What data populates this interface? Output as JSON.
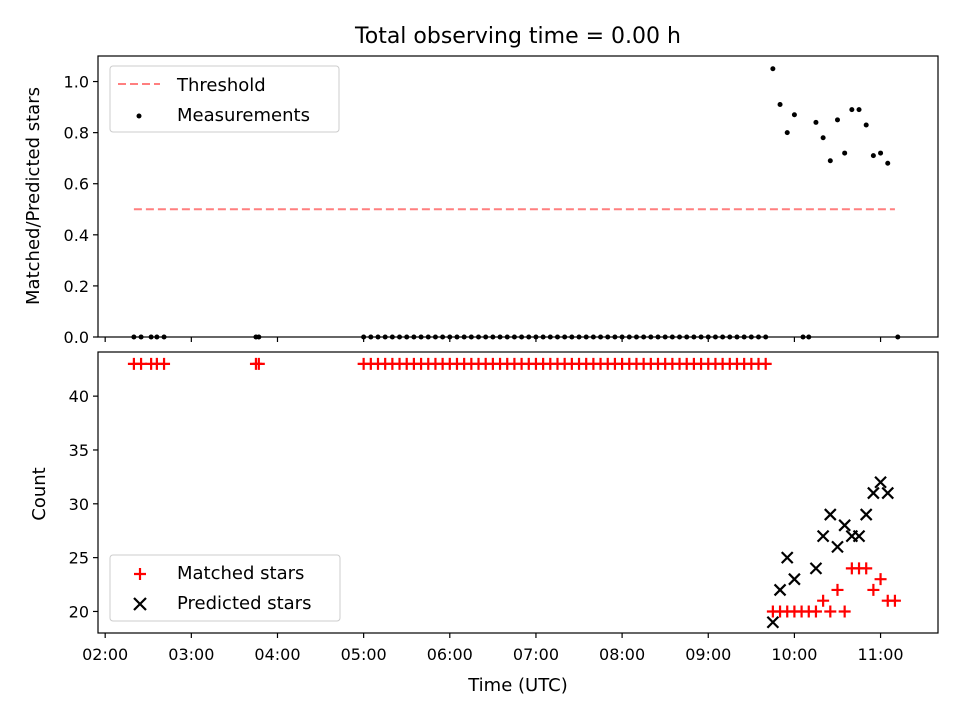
{
  "chart_data": [
    {
      "type": "scatter",
      "title": "Total observing time = 0.00 h",
      "xlabel": "",
      "ylabel": "Matched/Predicted stars",
      "ylim": [
        0,
        1.1
      ],
      "yticks": [
        "0.0",
        "0.2",
        "0.4",
        "0.6",
        "0.8",
        "1.0"
      ],
      "legend": "upper-left",
      "threshold": {
        "name": "Threshold",
        "value": 0.5,
        "x_start": "02:20",
        "x_end": "11:10",
        "color": "#ff7f7f"
      },
      "series": [
        {
          "name": "Measurements",
          "color": "#000000",
          "points": [
            [
              "02:20",
              0
            ],
            [
              "02:25",
              0
            ],
            [
              "02:32",
              0
            ],
            [
              "02:36",
              0
            ],
            [
              "02:41",
              0
            ],
            [
              "03:45",
              0
            ],
            [
              "03:47",
              0
            ],
            [
              "05:00",
              0
            ],
            [
              "05:05",
              0
            ],
            [
              "05:10",
              0
            ],
            [
              "05:15",
              0
            ],
            [
              "05:20",
              0
            ],
            [
              "05:25",
              0
            ],
            [
              "05:30",
              0
            ],
            [
              "05:35",
              0
            ],
            [
              "05:40",
              0
            ],
            [
              "05:45",
              0
            ],
            [
              "05:50",
              0
            ],
            [
              "05:55",
              0
            ],
            [
              "06:00",
              0
            ],
            [
              "06:05",
              0
            ],
            [
              "06:10",
              0
            ],
            [
              "06:15",
              0
            ],
            [
              "06:20",
              0
            ],
            [
              "06:25",
              0
            ],
            [
              "06:30",
              0
            ],
            [
              "06:35",
              0
            ],
            [
              "06:40",
              0
            ],
            [
              "06:45",
              0
            ],
            [
              "06:50",
              0
            ],
            [
              "06:55",
              0
            ],
            [
              "07:00",
              0
            ],
            [
              "07:05",
              0
            ],
            [
              "07:10",
              0
            ],
            [
              "07:15",
              0
            ],
            [
              "07:20",
              0
            ],
            [
              "07:25",
              0
            ],
            [
              "07:30",
              0
            ],
            [
              "07:35",
              0
            ],
            [
              "07:40",
              0
            ],
            [
              "07:45",
              0
            ],
            [
              "07:50",
              0
            ],
            [
              "07:55",
              0
            ],
            [
              "08:00",
              0
            ],
            [
              "08:05",
              0
            ],
            [
              "08:10",
              0
            ],
            [
              "08:15",
              0
            ],
            [
              "08:20",
              0
            ],
            [
              "08:25",
              0
            ],
            [
              "08:30",
              0
            ],
            [
              "08:35",
              0
            ],
            [
              "08:40",
              0
            ],
            [
              "08:45",
              0
            ],
            [
              "08:50",
              0
            ],
            [
              "08:55",
              0
            ],
            [
              "09:00",
              0
            ],
            [
              "09:05",
              0
            ],
            [
              "09:10",
              0
            ],
            [
              "09:15",
              0
            ],
            [
              "09:20",
              0
            ],
            [
              "09:25",
              0
            ],
            [
              "09:30",
              0
            ],
            [
              "09:35",
              0
            ],
            [
              "09:40",
              0
            ],
            [
              "09:45",
              1.05
            ],
            [
              "09:50",
              0.91
            ],
            [
              "09:55",
              0.8
            ],
            [
              "10:00",
              0.87
            ],
            [
              "10:06",
              0
            ],
            [
              "10:10",
              0
            ],
            [
              "10:15",
              0.84
            ],
            [
              "10:20",
              0.78
            ],
            [
              "10:25",
              0.69
            ],
            [
              "10:30",
              0.85
            ],
            [
              "10:35",
              0.72
            ],
            [
              "10:40",
              0.89
            ],
            [
              "10:45",
              0.89
            ],
            [
              "10:50",
              0.83
            ],
            [
              "10:55",
              0.71
            ],
            [
              "11:00",
              0.72
            ],
            [
              "11:05",
              0.68
            ],
            [
              "11:12",
              0
            ]
          ]
        }
      ]
    },
    {
      "type": "scatter",
      "title": "",
      "xlabel": "Time (UTC)",
      "ylabel": "Count",
      "ylim": [
        18,
        44.1
      ],
      "yticks": [
        "20",
        "25",
        "30",
        "35",
        "40"
      ],
      "xticks": [
        "02:00",
        "03:00",
        "04:00",
        "05:00",
        "06:00",
        "07:00",
        "08:00",
        "09:00",
        "10:00",
        "11:00"
      ],
      "xlim": [
        "01:55",
        "11:40"
      ],
      "legend": "lower-left",
      "series": [
        {
          "name": "Matched stars",
          "marker": "+",
          "color": "#ff0000",
          "points": [
            [
              "02:20",
              43
            ],
            [
              "02:25",
              43
            ],
            [
              "02:32",
              43
            ],
            [
              "02:36",
              43
            ],
            [
              "02:41",
              43
            ],
            [
              "03:45",
              43
            ],
            [
              "03:47",
              43
            ],
            [
              "05:00",
              43
            ],
            [
              "05:05",
              43
            ],
            [
              "05:10",
              43
            ],
            [
              "05:15",
              43
            ],
            [
              "05:20",
              43
            ],
            [
              "05:25",
              43
            ],
            [
              "05:30",
              43
            ],
            [
              "05:35",
              43
            ],
            [
              "05:40",
              43
            ],
            [
              "05:45",
              43
            ],
            [
              "05:50",
              43
            ],
            [
              "05:55",
              43
            ],
            [
              "06:00",
              43
            ],
            [
              "06:05",
              43
            ],
            [
              "06:10",
              43
            ],
            [
              "06:15",
              43
            ],
            [
              "06:20",
              43
            ],
            [
              "06:25",
              43
            ],
            [
              "06:30",
              43
            ],
            [
              "06:35",
              43
            ],
            [
              "06:40",
              43
            ],
            [
              "06:45",
              43
            ],
            [
              "06:50",
              43
            ],
            [
              "06:55",
              43
            ],
            [
              "07:00",
              43
            ],
            [
              "07:05",
              43
            ],
            [
              "07:10",
              43
            ],
            [
              "07:15",
              43
            ],
            [
              "07:20",
              43
            ],
            [
              "07:25",
              43
            ],
            [
              "07:30",
              43
            ],
            [
              "07:35",
              43
            ],
            [
              "07:40",
              43
            ],
            [
              "07:45",
              43
            ],
            [
              "07:50",
              43
            ],
            [
              "07:55",
              43
            ],
            [
              "08:00",
              43
            ],
            [
              "08:05",
              43
            ],
            [
              "08:10",
              43
            ],
            [
              "08:15",
              43
            ],
            [
              "08:20",
              43
            ],
            [
              "08:25",
              43
            ],
            [
              "08:30",
              43
            ],
            [
              "08:35",
              43
            ],
            [
              "08:40",
              43
            ],
            [
              "08:45",
              43
            ],
            [
              "08:50",
              43
            ],
            [
              "08:55",
              43
            ],
            [
              "09:00",
              43
            ],
            [
              "09:05",
              43
            ],
            [
              "09:10",
              43
            ],
            [
              "09:15",
              43
            ],
            [
              "09:20",
              43
            ],
            [
              "09:25",
              43
            ],
            [
              "09:30",
              43
            ],
            [
              "09:35",
              43
            ],
            [
              "09:40",
              43
            ],
            [
              "09:45",
              20
            ],
            [
              "09:50",
              20
            ],
            [
              "09:55",
              20
            ],
            [
              "10:00",
              20
            ],
            [
              "10:05",
              20
            ],
            [
              "10:10",
              20
            ],
            [
              "10:15",
              20
            ],
            [
              "10:20",
              21
            ],
            [
              "10:25",
              20
            ],
            [
              "10:30",
              22
            ],
            [
              "10:35",
              20
            ],
            [
              "10:40",
              24
            ],
            [
              "10:45",
              24
            ],
            [
              "10:50",
              24
            ],
            [
              "10:55",
              22
            ],
            [
              "11:00",
              23
            ],
            [
              "11:05",
              21
            ],
            [
              "11:10",
              21
            ]
          ]
        },
        {
          "name": "Predicted stars",
          "marker": "x",
          "color": "#000000",
          "points": [
            [
              "09:45",
              19
            ],
            [
              "09:50",
              22
            ],
            [
              "09:55",
              25
            ],
            [
              "10:00",
              23
            ],
            [
              "10:15",
              24
            ],
            [
              "10:20",
              27
            ],
            [
              "10:25",
              29
            ],
            [
              "10:30",
              26
            ],
            [
              "10:35",
              28
            ],
            [
              "10:40",
              27
            ],
            [
              "10:45",
              27
            ],
            [
              "10:50",
              29
            ],
            [
              "10:55",
              31
            ],
            [
              "11:00",
              32
            ],
            [
              "11:05",
              31
            ]
          ]
        }
      ]
    }
  ]
}
